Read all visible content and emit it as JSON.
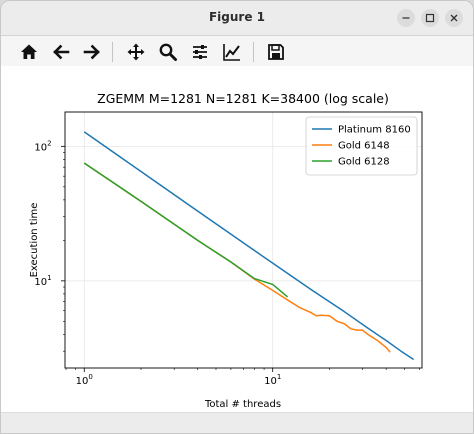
{
  "window": {
    "title": "Figure 1"
  },
  "toolbar": {
    "buttons": [
      {
        "name": "home-icon"
      },
      {
        "name": "back-arrow-icon"
      },
      {
        "name": "forward-arrow-icon"
      },
      {
        "name": "pan-icon"
      },
      {
        "name": "zoom-icon"
      },
      {
        "name": "configure-subplots-icon"
      },
      {
        "name": "edit-axis-icon"
      },
      {
        "name": "save-icon"
      }
    ]
  },
  "chart_data": {
    "type": "line",
    "title": "ZGEMM M=1281 N=1281 K=38400 (log scale)",
    "xlabel": "Total # threads",
    "ylabel": "Execution time",
    "xscale": "log",
    "yscale": "log",
    "xlim": [
      0.79,
      62
    ],
    "ylim": [
      2.25,
      180
    ],
    "xticks": [
      {
        "value": 1,
        "base": "10",
        "exp": "0"
      },
      {
        "value": 10,
        "base": "10",
        "exp": "1"
      }
    ],
    "yticks": [
      {
        "value": 10,
        "base": "10",
        "exp": "1"
      },
      {
        "value": 100,
        "base": "10",
        "exp": "2"
      }
    ],
    "grid": true,
    "legend_position": "top-right",
    "series": [
      {
        "name": "Platinum 8160",
        "color": "#1f77b4",
        "points": [
          [
            1,
            128
          ],
          [
            2,
            65
          ],
          [
            4,
            33
          ],
          [
            8,
            16.8
          ],
          [
            16,
            8.6
          ],
          [
            24,
            5.9
          ],
          [
            32,
            4.45
          ],
          [
            40,
            3.6
          ],
          [
            48,
            3.0
          ],
          [
            56,
            2.6
          ]
        ]
      },
      {
        "name": "Gold 6148",
        "color": "#ff7f0e",
        "points": [
          [
            1,
            75
          ],
          [
            2,
            39
          ],
          [
            4,
            20
          ],
          [
            6,
            13.8
          ],
          [
            8,
            10.3
          ],
          [
            10,
            8.5
          ],
          [
            12,
            7.2
          ],
          [
            14,
            6.3
          ],
          [
            16,
            5.8
          ],
          [
            17,
            5.5
          ],
          [
            18,
            5.55
          ],
          [
            20,
            5.5
          ],
          [
            22,
            5.0
          ],
          [
            24,
            4.8
          ],
          [
            26,
            4.4
          ],
          [
            28,
            4.3
          ],
          [
            30,
            4.3
          ],
          [
            32,
            4.0
          ],
          [
            36,
            3.6
          ],
          [
            40,
            3.2
          ],
          [
            42,
            2.95
          ]
        ]
      },
      {
        "name": "Gold 6128",
        "color": "#2ca02c",
        "points": [
          [
            1,
            75
          ],
          [
            2,
            39
          ],
          [
            4,
            20
          ],
          [
            6,
            13.8
          ],
          [
            8,
            10.4
          ],
          [
            10,
            9.4
          ],
          [
            12,
            7.6
          ]
        ]
      }
    ]
  }
}
